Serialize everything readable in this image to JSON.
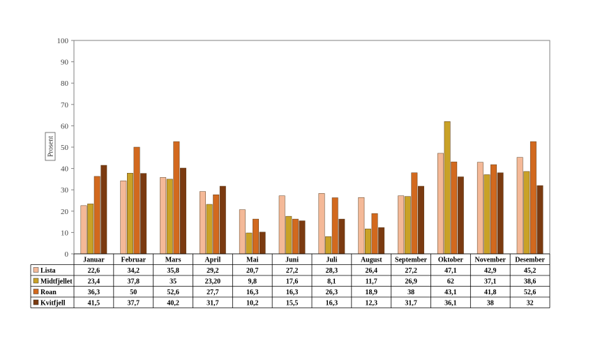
{
  "chart_data": {
    "type": "bar",
    "ylabel": "Prosent",
    "ylim": [
      0,
      100
    ],
    "yticks": [
      0,
      10,
      20,
      30,
      40,
      50,
      60,
      70,
      80,
      90,
      100
    ],
    "grid": false,
    "legend": "data-table-left",
    "categories": [
      "Januar",
      "Februar",
      "Mars",
      "April",
      "Mai",
      "Juni",
      "Juli",
      "August",
      "September",
      "Oktober",
      "November",
      "Desember"
    ],
    "series": [
      {
        "name": "Lista",
        "color": "#f4b998",
        "values": [
          22.6,
          34.2,
          35.8,
          29.2,
          20.7,
          27.2,
          28.3,
          26.4,
          27.2,
          47.1,
          42.9,
          45.2
        ],
        "labels": [
          "22,6",
          "34,2",
          "35,8",
          "29,2",
          "20,7",
          "27,2",
          "28,3",
          "26,4",
          "27,2",
          "47,1",
          "42,9",
          "45,2"
        ]
      },
      {
        "name": "Midtfjellet",
        "color": "#c9a227",
        "values": [
          23.4,
          37.8,
          35,
          23.2,
          9.8,
          17.6,
          8.1,
          11.7,
          26.9,
          62,
          37.1,
          38.6
        ],
        "labels": [
          "23,4",
          "37,8",
          "35",
          "23,20",
          "9,8",
          "17,6",
          "8,1",
          "11,7",
          "26,9",
          "62",
          "37,1",
          "38,6"
        ]
      },
      {
        "name": "Roan",
        "color": "#d2691e",
        "values": [
          36.3,
          50,
          52.6,
          27.7,
          16.3,
          16.3,
          26.3,
          18.9,
          38,
          43.1,
          41.8,
          52.6
        ],
        "labels": [
          "36,3",
          "50",
          "52,6",
          "27,7",
          "16,3",
          "16,3",
          "26,3",
          "18,9",
          "38",
          "43,1",
          "41,8",
          "52,6"
        ]
      },
      {
        "name": "Kvitfjell",
        "color": "#7b3a10",
        "values": [
          41.5,
          37.7,
          40.2,
          31.7,
          10.2,
          15.5,
          16.3,
          12.3,
          31.7,
          36.1,
          38,
          32
        ],
        "labels": [
          "41,5",
          "37,7",
          "40,2",
          "31,7",
          "10,2",
          "15,5",
          "16,3",
          "12,3",
          "31,7",
          "36,1",
          "38",
          "32"
        ]
      }
    ]
  }
}
